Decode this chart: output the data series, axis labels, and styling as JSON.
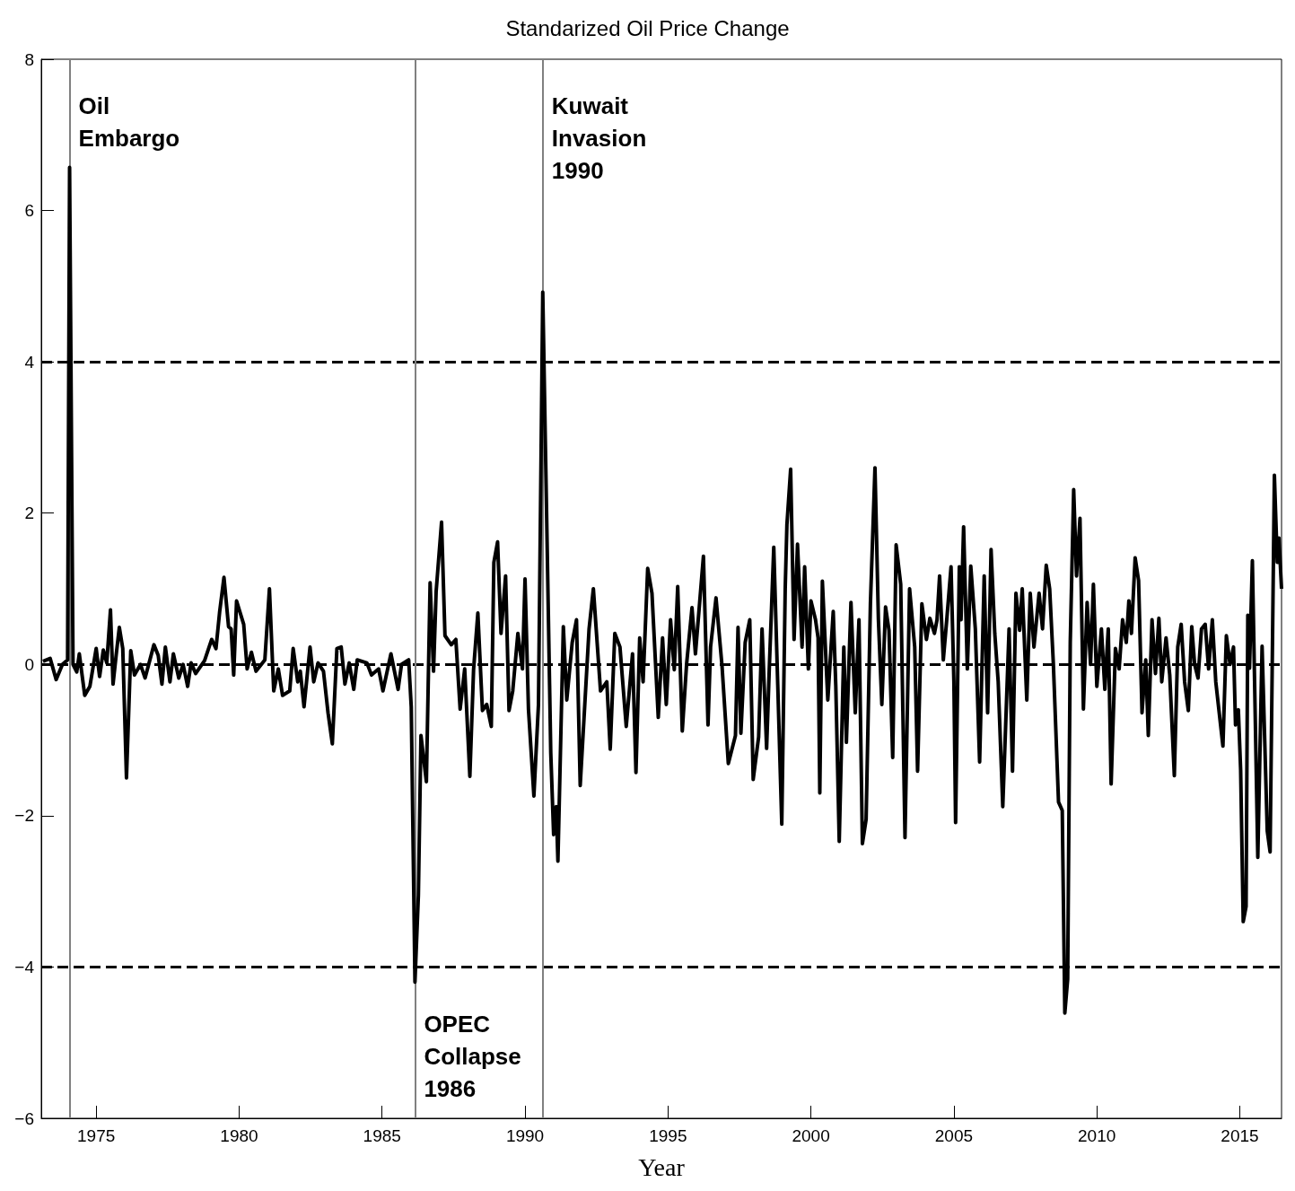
{
  "chart_data": {
    "type": "line",
    "title": "Standarized Oil Price Change",
    "xlabel": "Year",
    "xlim": [
      1973.08,
      2016.46
    ],
    "xticks": [
      1975,
      1980,
      1985,
      1990,
      1995,
      2000,
      2005,
      2010,
      2015
    ],
    "ylim": [
      -6,
      8
    ],
    "yticks": [
      -6,
      -4,
      -2,
      0,
      2,
      4,
      6,
      8
    ],
    "grid": false,
    "marker": "none",
    "line_style": "solid",
    "series": [
      {
        "color": "#000000",
        "x": [
          1973.14,
          1973.39,
          1973.6,
          1973.82,
          1974.0,
          1974.07,
          1974.19,
          1974.32,
          1974.41,
          1974.6,
          1974.78,
          1975.0,
          1975.12,
          1975.25,
          1975.37,
          1975.5,
          1975.59,
          1975.71,
          1975.81,
          1975.93,
          1976.06,
          1976.21,
          1976.34,
          1976.55,
          1976.71,
          1977.02,
          1977.17,
          1977.3,
          1977.42,
          1977.58,
          1977.7,
          1977.89,
          1978.04,
          1978.2,
          1978.32,
          1978.48,
          1978.79,
          1979.04,
          1979.19,
          1979.32,
          1979.47,
          1979.63,
          1979.72,
          1979.81,
          1979.91,
          1980.16,
          1980.28,
          1980.43,
          1980.59,
          1980.9,
          1981.06,
          1981.21,
          1981.37,
          1981.52,
          1981.77,
          1981.89,
          1982.05,
          1982.14,
          1982.27,
          1982.48,
          1982.61,
          1982.76,
          1982.95,
          1983.11,
          1983.26,
          1983.42,
          1983.57,
          1983.7,
          1983.85,
          1984.01,
          1984.13,
          1984.47,
          1984.63,
          1984.88,
          1985.03,
          1985.31,
          1985.56,
          1985.68,
          1985.93,
          1986.02,
          1986.15,
          1986.27,
          1986.36,
          1986.55,
          1986.68,
          1986.8,
          1986.89,
          1987.08,
          1987.2,
          1987.42,
          1987.58,
          1987.73,
          1987.89,
          1988.07,
          1988.2,
          1988.35,
          1988.51,
          1988.66,
          1988.82,
          1988.91,
          1989.04,
          1989.16,
          1989.32,
          1989.44,
          1989.57,
          1989.75,
          1989.91,
          1990.0,
          1990.12,
          1990.31,
          1990.47,
          1990.62,
          1990.9,
          1991.0,
          1991.09,
          1991.15,
          1991.34,
          1991.46,
          1991.65,
          1991.8,
          1991.93,
          1992.24,
          1992.39,
          1992.64,
          1992.86,
          1992.98,
          1993.14,
          1993.32,
          1993.54,
          1993.76,
          1993.88,
          1994.01,
          1994.13,
          1994.29,
          1994.44,
          1994.66,
          1994.81,
          1994.94,
          1995.09,
          1995.22,
          1995.34,
          1995.5,
          1995.65,
          1995.84,
          1995.96,
          1996.24,
          1996.4,
          1996.49,
          1996.68,
          1996.89,
          1997.11,
          1997.36,
          1997.45,
          1997.55,
          1997.7,
          1997.86,
          1997.98,
          1998.17,
          1998.29,
          1998.45,
          1998.54,
          1998.7,
          1998.98,
          1999.1,
          1999.16,
          1999.29,
          1999.41,
          1999.53,
          1999.69,
          1999.78,
          1999.91,
          2000.0,
          2000.16,
          2000.25,
          2000.31,
          2000.4,
          2000.59,
          2000.78,
          2000.87,
          2000.99,
          2001.15,
          2001.24,
          2001.4,
          2001.55,
          2001.68,
          2001.8,
          2001.93,
          2002.08,
          2002.24,
          2002.36,
          2002.48,
          2002.61,
          2002.73,
          2002.86,
          2002.98,
          2003.14,
          2003.29,
          2003.45,
          2003.63,
          2003.73,
          2003.88,
          2004.04,
          2004.16,
          2004.32,
          2004.41,
          2004.5,
          2004.63,
          2004.75,
          2004.9,
          2005.0,
          2005.06,
          2005.19,
          2005.25,
          2005.34,
          2005.47,
          2005.59,
          2005.75,
          2005.9,
          2006.06,
          2006.18,
          2006.3,
          2006.43,
          2006.55,
          2006.71,
          2006.93,
          2007.05,
          2007.17,
          2007.3,
          2007.39,
          2007.55,
          2007.67,
          2007.8,
          2007.98,
          2008.1,
          2008.23,
          2008.35,
          2008.48,
          2008.66,
          2008.79,
          2008.88,
          2008.98,
          2009.07,
          2009.19,
          2009.29,
          2009.41,
          2009.53,
          2009.66,
          2009.78,
          2009.88,
          2010.0,
          2010.16,
          2010.28,
          2010.4,
          2010.5,
          2010.65,
          2010.78,
          2010.9,
          2011.03,
          2011.12,
          2011.21,
          2011.34,
          2011.46,
          2011.58,
          2011.71,
          2011.8,
          2011.93,
          2012.05,
          2012.17,
          2012.27,
          2012.42,
          2012.55,
          2012.71,
          2012.83,
          2012.95,
          2013.07,
          2013.2,
          2013.32,
          2013.42,
          2013.54,
          2013.66,
          2013.79,
          2013.91,
          2014.04,
          2014.16,
          2014.41,
          2014.53,
          2014.66,
          2014.78,
          2014.85,
          2014.95,
          2015.03,
          2015.12,
          2015.22,
          2015.28,
          2015.34,
          2015.44,
          2015.63,
          2015.78,
          2015.96,
          2016.06,
          2016.21,
          2016.31,
          2016.37,
          2016.46
        ],
        "values": [
          0.04,
          0.08,
          -0.2,
          0,
          0.06,
          6.57,
          0,
          -0.1,
          0.14,
          -0.41,
          -0.29,
          0.21,
          -0.16,
          0.19,
          0.02,
          0.72,
          -0.26,
          0.16,
          0.49,
          0.21,
          -1.5,
          0.18,
          -0.14,
          0,
          -0.18,
          0.26,
          0.12,
          -0.26,
          0.23,
          -0.23,
          0.14,
          -0.18,
          0,
          -0.29,
          0.02,
          -0.12,
          0.05,
          0.33,
          0.21,
          0.7,
          1.15,
          0.5,
          0.47,
          -0.14,
          0.84,
          0.53,
          -0.06,
          0.16,
          -0.09,
          0.06,
          1.0,
          -0.35,
          -0.06,
          -0.41,
          -0.35,
          0.21,
          -0.23,
          -0.09,
          -0.56,
          0.23,
          -0.23,
          0.02,
          -0.09,
          -0.64,
          -1.05,
          0.21,
          0.23,
          -0.26,
          0.02,
          -0.33,
          0.06,
          0.02,
          -0.14,
          -0.06,
          -0.35,
          0.14,
          -0.33,
          0,
          0.06,
          -0.56,
          -4.2,
          -3.05,
          -0.94,
          -1.55,
          1.08,
          -0.09,
          0.96,
          1.88,
          0.38,
          0.26,
          0.33,
          -0.59,
          -0.06,
          -1.48,
          -0.07,
          0.68,
          -0.61,
          -0.53,
          -0.82,
          1.35,
          1.62,
          0.41,
          1.17,
          -0.61,
          -0.35,
          0.41,
          -0.06,
          1.13,
          -0.59,
          -1.74,
          -0.53,
          4.92,
          -1.17,
          -2.25,
          -1.88,
          -2.6,
          0.5,
          -0.47,
          0.29,
          0.59,
          -1.6,
          0.47,
          1.0,
          -0.35,
          -0.23,
          -1.12,
          0.41,
          0.23,
          -0.82,
          0.14,
          -1.43,
          0.35,
          -0.23,
          1.27,
          0.94,
          -0.7,
          0.35,
          -0.53,
          0.59,
          -0.07,
          1.03,
          -0.88,
          0,
          0.75,
          0.14,
          1.43,
          -0.8,
          0.23,
          0.88,
          -0.02,
          -1.31,
          -0.94,
          0.49,
          -0.91,
          0.29,
          0.59,
          -1.52,
          -0.96,
          0.47,
          -1.11,
          -0.09,
          1.55,
          -2.11,
          1.0,
          1.85,
          2.58,
          0.33,
          1.59,
          0.23,
          1.29,
          -0.06,
          0.84,
          0.59,
          0.35,
          -1.7,
          1.1,
          -0.47,
          0.7,
          -0.29,
          -2.34,
          0.23,
          -1.03,
          0.82,
          -0.64,
          0.59,
          -2.37,
          -2.05,
          0.8,
          2.6,
          0.59,
          -0.53,
          0.76,
          0.45,
          -1.23,
          1.58,
          1.06,
          -2.29,
          1.0,
          0.23,
          -1.41,
          0.8,
          0.33,
          0.61,
          0.41,
          0.59,
          1.17,
          0.06,
          0.59,
          1.29,
          -0.23,
          -2.09,
          1.29,
          0.59,
          1.82,
          -0.06,
          1.3,
          0.47,
          -1.29,
          1.17,
          -0.64,
          1.52,
          0.41,
          -0.23,
          -1.88,
          0.47,
          -1.41,
          0.94,
          0.45,
          1.0,
          -0.47,
          0.94,
          0.23,
          0.94,
          0.47,
          1.31,
          1.0,
          0,
          -1.82,
          -1.93,
          -4.61,
          -4.16,
          0.29,
          2.31,
          1.17,
          1.93,
          -0.59,
          0.82,
          0,
          1.06,
          -0.29,
          0.47,
          -0.33,
          0.47,
          -1.58,
          0.21,
          -0.06,
          0.59,
          0.29,
          0.84,
          0.41,
          1.41,
          1.11,
          -0.64,
          0.06,
          -0.94,
          0.59,
          -0.12,
          0.61,
          -0.23,
          0.35,
          -0.14,
          -1.47,
          0.23,
          0.53,
          -0.23,
          -0.61,
          0.5,
          0,
          -0.18,
          0.47,
          0.53,
          -0.06,
          0.59,
          -0.23,
          -1.08,
          0.38,
          0,
          0.23,
          -0.8,
          -0.6,
          -1.4,
          -3.4,
          -3.2,
          0.65,
          -0.05,
          1.37,
          -2.55,
          0.24,
          -2.2,
          -2.48,
          2.5,
          1.35,
          1.67,
          1.0
        ]
      }
    ],
    "ref_lines": [
      {
        "axis": "y",
        "value": 4,
        "color": "#000000",
        "line_style": "dashed"
      },
      {
        "axis": "y",
        "value": -4,
        "color": "#000000",
        "line_style": "dashed"
      },
      {
        "axis": "y",
        "value": 0,
        "color": "#000000",
        "line_style": "dashed"
      },
      {
        "axis": "x",
        "value": 1974.07,
        "label": "Oil\nEmbargo",
        "color": "#808080",
        "line_style": "solid"
      },
      {
        "axis": "x",
        "value": 1986.15,
        "label": "OPEC\nCollapse\n1986",
        "color": "#808080",
        "line_style": "solid"
      },
      {
        "axis": "x",
        "value": 1990.62,
        "label": "Kuwait\nInvasion\n1990",
        "color": "#808080",
        "line_style": "solid"
      }
    ]
  }
}
